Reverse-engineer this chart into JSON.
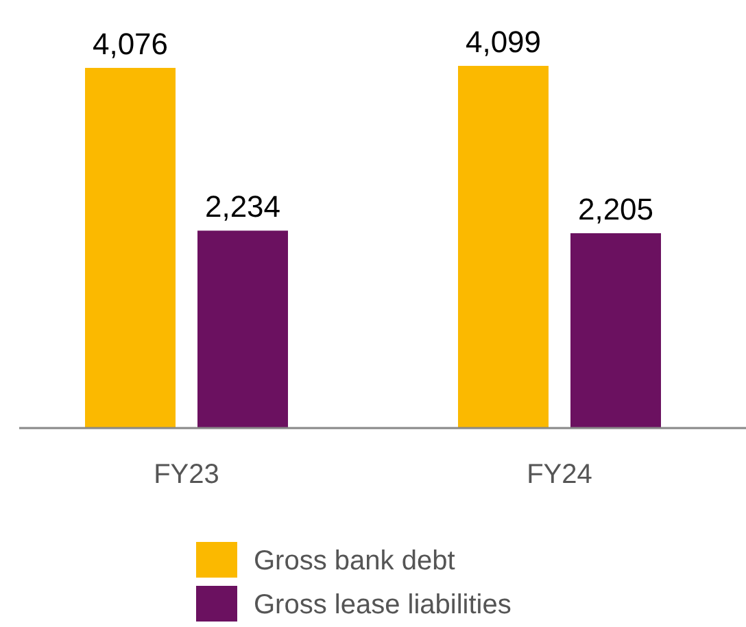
{
  "chart_data": {
    "type": "bar",
    "categories": [
      "FY23",
      "FY24"
    ],
    "series": [
      {
        "name": "Gross bank debt",
        "color": "#fbb900",
        "values": [
          4076,
          4099
        ],
        "value_labels": [
          "4,076",
          "4,099"
        ]
      },
      {
        "name": "Gross lease liabilities",
        "color": "#6b1160",
        "values": [
          2234,
          2205
        ],
        "value_labels": [
          "2,234",
          "2,205"
        ]
      }
    ],
    "legend": "bottom",
    "grid": false
  }
}
